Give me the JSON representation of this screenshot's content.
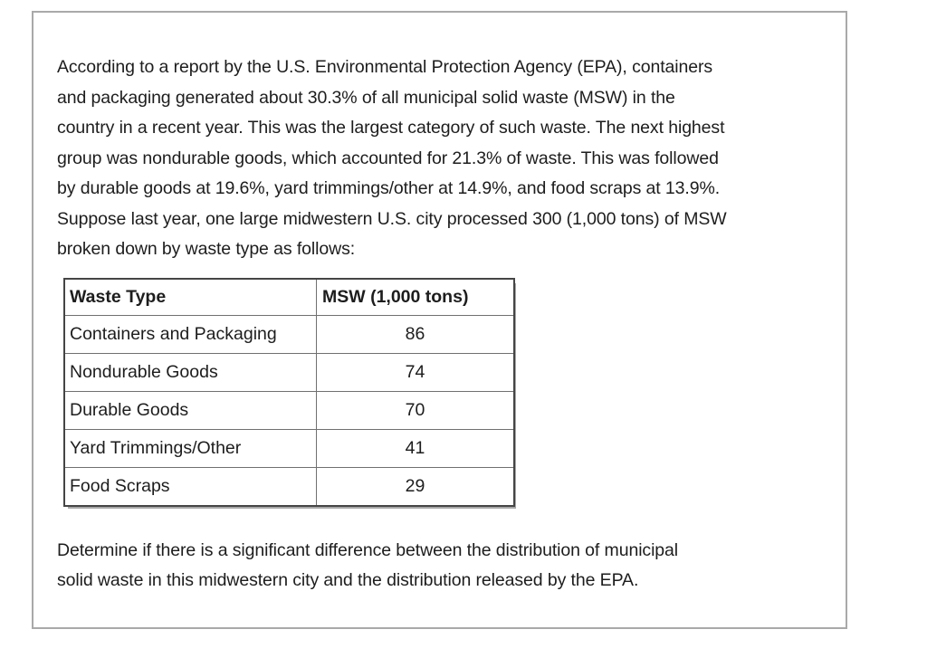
{
  "page": {
    "background_color": "#ffffff",
    "frame_border_color": "#a9a9a9",
    "text_color": "#1d1d1d",
    "table_outer_border_color": "#454545",
    "table_inner_border_color": "#707070",
    "table_shadow_color": "#a8a8a8"
  },
  "problem": {
    "intro_lines": [
      "According to a report by the U.S. Environmental Protection Agency (EPA), containers",
      "and packaging generated about 30.3% of all municipal solid waste (MSW) in the",
      "country in a recent year. This was the largest category of such waste. The next highest",
      "group was nondurable goods, which accounted for 21.3% of waste. This was followed",
      "by durable goods at 19.6%, yard trimmings/other at 14.9%, and food scraps at 13.9%.",
      "Suppose last year, one large midwestern U.S. city processed 300 (1,000 tons) of MSW",
      "broken down by waste type as follows:"
    ],
    "question_lines": [
      "Determine if there is a significant difference between the distribution of municipal",
      "solid waste in this midwestern city and the distribution released by the EPA."
    ]
  },
  "table": {
    "columns": [
      "Waste Type",
      "MSW (1,000 tons)"
    ],
    "rows": [
      {
        "waste_type": "Containers and Packaging",
        "msw": 86
      },
      {
        "waste_type": "Nondurable Goods",
        "msw": 74
      },
      {
        "waste_type": "Durable Goods",
        "msw": 70
      },
      {
        "waste_type": "Yard Trimmings/Other",
        "msw": 41
      },
      {
        "waste_type": "Food Scraps",
        "msw": 29
      }
    ]
  },
  "chart_data": {
    "type": "table",
    "columns": [
      "Waste Type",
      "MSW (1,000 tons)"
    ],
    "categories": [
      "Containers and Packaging",
      "Nondurable Goods",
      "Durable Goods",
      "Yard Trimmings/Other",
      "Food Scraps"
    ],
    "values": [
      86,
      74,
      70,
      41,
      29
    ],
    "epa_reference_percentages": [
      30.3,
      21.3,
      19.6,
      14.9,
      13.9
    ],
    "total": 300
  }
}
